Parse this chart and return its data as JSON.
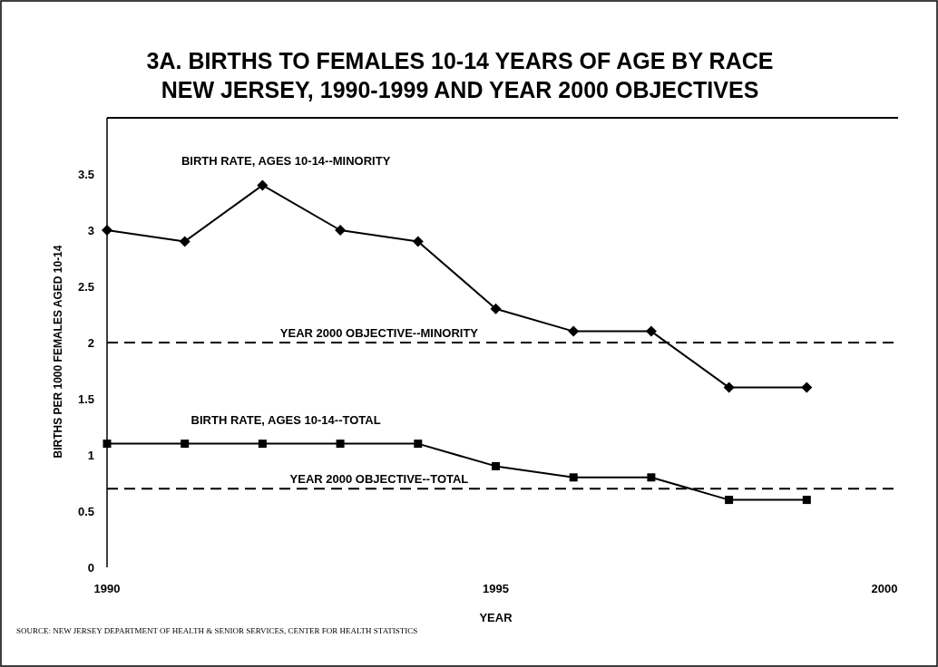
{
  "chart_data": {
    "type": "line",
    "title": "3A. BIRTHS TO FEMALES 10-14 YEARS OF AGE BY RACE\nNEW JERSEY, 1990-1999 AND YEAR 2000 OBJECTIVES",
    "xlabel": "YEAR",
    "ylabel": "BIRTHS PER 1000 FEMALES AGED 10-14",
    "x": [
      1990,
      1991,
      1992,
      1993,
      1994,
      1995,
      1996,
      1997,
      1998,
      1999
    ],
    "series": [
      {
        "name": "BIRTH RATE, AGES 10-14--MINORITY",
        "color": "#000000",
        "marker": "diamond",
        "values": [
          3.0,
          2.9,
          3.4,
          3.0,
          2.9,
          2.3,
          2.1,
          2.1,
          1.6,
          1.6
        ]
      },
      {
        "name": "BIRTH RATE, AGES 10-14--TOTAL",
        "color": "#000000",
        "marker": "square",
        "values": [
          1.1,
          1.1,
          1.1,
          1.1,
          1.1,
          0.9,
          0.8,
          0.8,
          0.6,
          0.6
        ]
      }
    ],
    "xlim": [
      1990,
      2000
    ],
    "xticks": [
      1990,
      1995,
      2000
    ],
    "ylim": [
      0,
      4
    ],
    "yticks": [
      0,
      0.5,
      1,
      1.5,
      2,
      2.5,
      3,
      3.5
    ],
    "ref_lines": [
      {
        "axis": "y",
        "value": 2,
        "label": "YEAR 2000 OBJECTIVE--MINORITY",
        "color": "#000000",
        "line_style": "dashed"
      },
      {
        "axis": "y",
        "value": 0.7,
        "label": "YEAR 2000 OBJECTIVE--TOTAL",
        "color": "#000000",
        "line_style": "dashed"
      }
    ],
    "grid": false,
    "legend": false,
    "line_style": "solid",
    "annotations": [
      "SOURCE: NEW JERSEY DEPARTMENT OF HEALTH & SENIOR SERVICES, CENTER FOR HEALTH STATISTICS"
    ]
  }
}
